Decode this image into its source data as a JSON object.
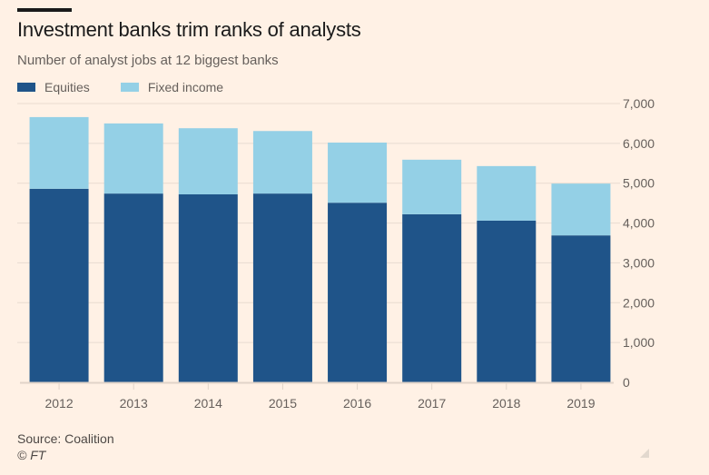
{
  "chart_data": {
    "type": "bar",
    "stacked": true,
    "title": "Investment banks trim ranks of analysts",
    "subtitle": "Number of analyst jobs at 12 biggest banks",
    "xlabel": "",
    "ylabel": "",
    "categories": [
      "2012",
      "2013",
      "2014",
      "2015",
      "2016",
      "2017",
      "2018",
      "2019"
    ],
    "series": [
      {
        "name": "Equities",
        "color": "#1f5489",
        "values": [
          4860,
          4740,
          4720,
          4740,
          4510,
          4220,
          4060,
          3690
        ]
      },
      {
        "name": "Fixed income",
        "color": "#94d0e6",
        "values": [
          1800,
          1760,
          1660,
          1570,
          1510,
          1370,
          1370,
          1300
        ]
      }
    ],
    "ylim": [
      0,
      7000
    ],
    "yticks": [
      0,
      1000,
      2000,
      3000,
      4000,
      5000,
      6000,
      7000
    ],
    "ytick_labels": [
      "0",
      "1,000",
      "2,000",
      "3,000",
      "4,000",
      "5,000",
      "6,000",
      "7,000"
    ],
    "y_axis_side": "right",
    "grid": true,
    "legend_position": "top-left"
  },
  "source": "Source: Coalition",
  "copyright": "© FT"
}
